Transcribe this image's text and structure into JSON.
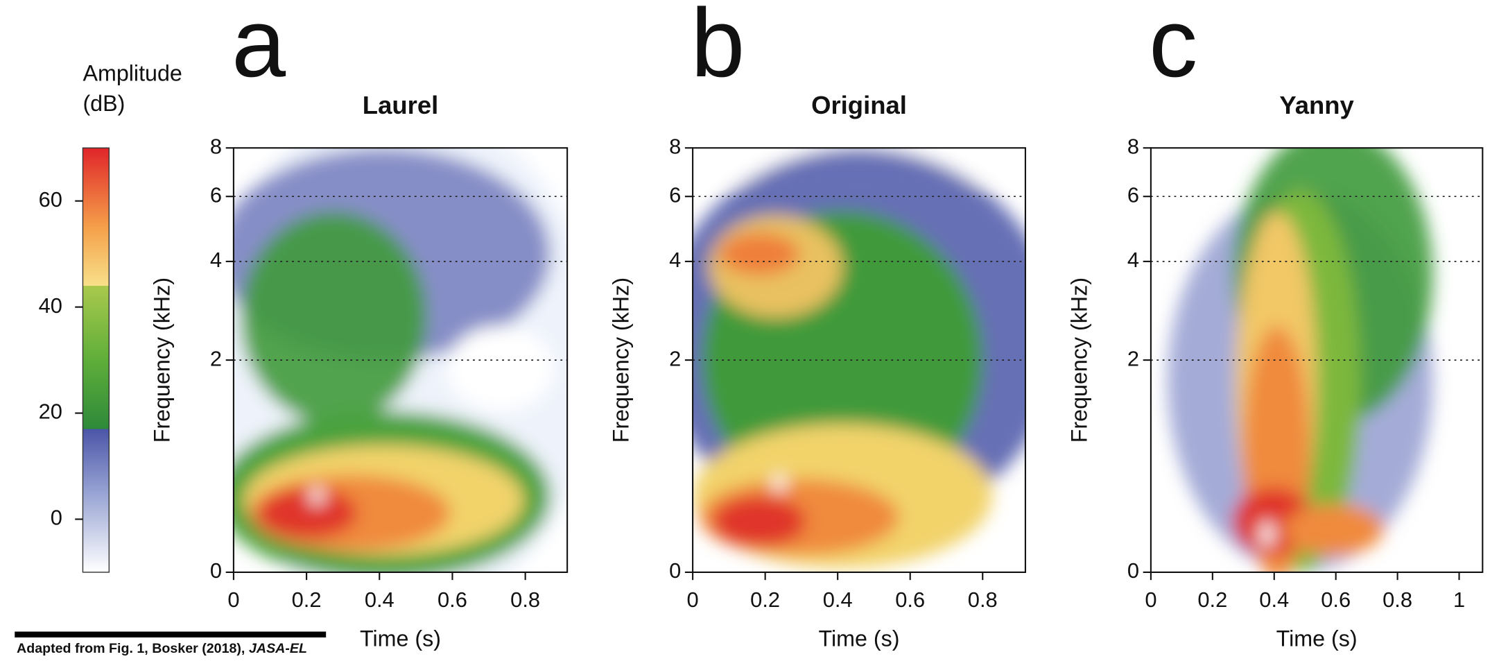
{
  "chart_data": [
    {
      "type": "spectrogram",
      "panel_label": "a",
      "title": "Laurel",
      "xlabel": "Time (s)",
      "ylabel": "Frequency (kHz)",
      "xlim": [
        0,
        0.915
      ],
      "xticks": [
        0,
        0.2,
        0.4,
        0.6,
        0.8
      ],
      "ylim": [
        0,
        8
      ],
      "yticks": [
        0,
        2,
        4,
        6,
        8
      ],
      "yscale": "mel",
      "grid": "dotted"
    },
    {
      "type": "spectrogram",
      "panel_label": "b",
      "title": "Original",
      "xlabel": "Time (s)",
      "ylabel": "Frequency (kHz)",
      "xlim": [
        0,
        0.918
      ],
      "xticks": [
        0,
        0.2,
        0.4,
        0.6,
        0.8
      ],
      "ylim": [
        0,
        8
      ],
      "yticks": [
        0,
        2,
        4,
        6,
        8
      ],
      "yscale": "mel",
      "grid": "dotted"
    },
    {
      "type": "spectrogram",
      "panel_label": "c",
      "title": "Yanny",
      "xlabel": "Time (s)",
      "ylabel": "Frequency (kHz)",
      "xlim": [
        0,
        1.076
      ],
      "xticks": [
        0,
        0.2,
        0.4,
        0.6,
        0.8,
        1
      ],
      "ylim": [
        0,
        8
      ],
      "yticks": [
        0,
        2,
        4,
        6,
        8
      ],
      "yscale": "mel",
      "grid": "dotted"
    }
  ],
  "colorbar": {
    "label_lines": [
      "Amplitude",
      "(dB)"
    ],
    "lim": [
      -10,
      70
    ],
    "ticks": [
      0,
      20,
      40,
      60
    ],
    "stops": [
      {
        "value": -10,
        "color": "#ffffff"
      },
      {
        "value": 5,
        "color": "#97a3d3"
      },
      {
        "value": 17,
        "color": "#4b55a8"
      },
      {
        "value": 17,
        "color": "#2e8a3a"
      },
      {
        "value": 30,
        "color": "#5fae3a"
      },
      {
        "value": 44,
        "color": "#a9c94c"
      },
      {
        "value": 44,
        "color": "#f8e08a"
      },
      {
        "value": 55,
        "color": "#f5a04a"
      },
      {
        "value": 70,
        "color": "#e0252a"
      }
    ]
  },
  "source": {
    "text": "Adapted from Fig. 1, Bosker (2018),",
    "journal": "JASA-EL"
  }
}
